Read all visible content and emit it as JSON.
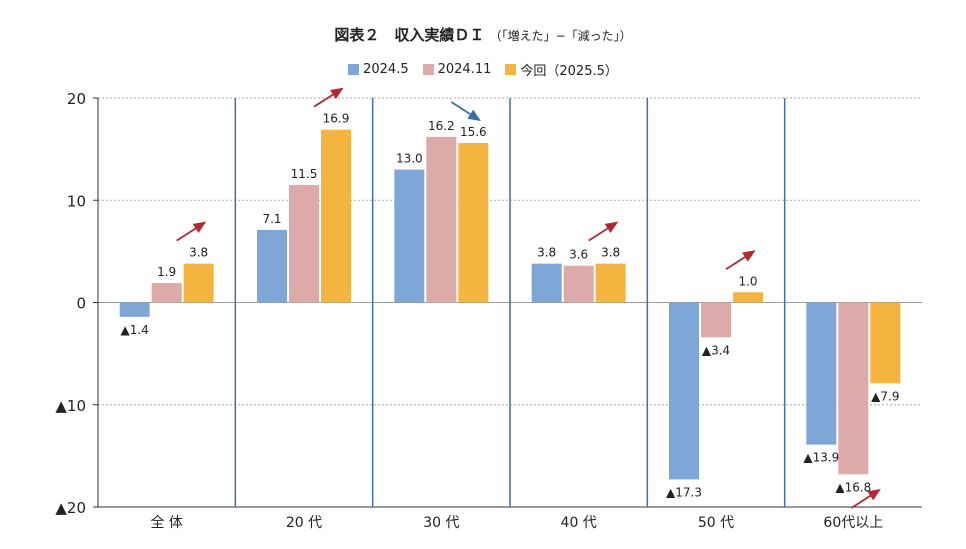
{
  "chart_data": {
    "type": "bar",
    "title": "図表２　収入実績ＤＩ",
    "subtitle": "（「増えた」−「減った」）",
    "categories": [
      "全 体",
      "20 代",
      "30 代",
      "40 代",
      "50 代",
      "60代以上"
    ],
    "series": [
      {
        "name": "2024.5",
        "values": [
          -1.4,
          7.1,
          13.0,
          3.8,
          -17.3,
          -13.9
        ],
        "labels": [
          "▲1.4",
          "7.1",
          "13.0",
          "3.8",
          "▲17.3",
          "▲13.9"
        ]
      },
      {
        "name": "2024.11",
        "values": [
          1.9,
          11.5,
          16.2,
          3.6,
          -3.4,
          -16.8
        ],
        "labels": [
          "1.9",
          "11.5",
          "16.2",
          "3.6",
          "▲3.4",
          "▲16.8"
        ]
      },
      {
        "name": "今回（2025.5）",
        "values": [
          3.8,
          16.9,
          15.6,
          3.8,
          1.0,
          -7.9
        ],
        "labels": [
          "3.8",
          "16.9",
          "15.6",
          "3.8",
          "1.0",
          "▲7.9"
        ]
      }
    ],
    "colors": [
      "#7ea7d8",
      "#dcaaa9",
      "#f4b440"
    ],
    "arrow_colors": {
      "up": "#b1282f",
      "down": "#3b6ea8"
    },
    "trend_arrows": [
      "up",
      "up",
      "down",
      "up",
      "up",
      "up"
    ],
    "yticks": [
      20,
      10,
      0,
      -10,
      -20
    ],
    "ytick_labels": [
      "20",
      "10",
      "0",
      "▲10",
      "▲20"
    ],
    "ylim": [
      -20,
      20
    ],
    "grid": "horizontal dotted",
    "legend_position": "top",
    "xlabel": "",
    "ylabel": ""
  }
}
